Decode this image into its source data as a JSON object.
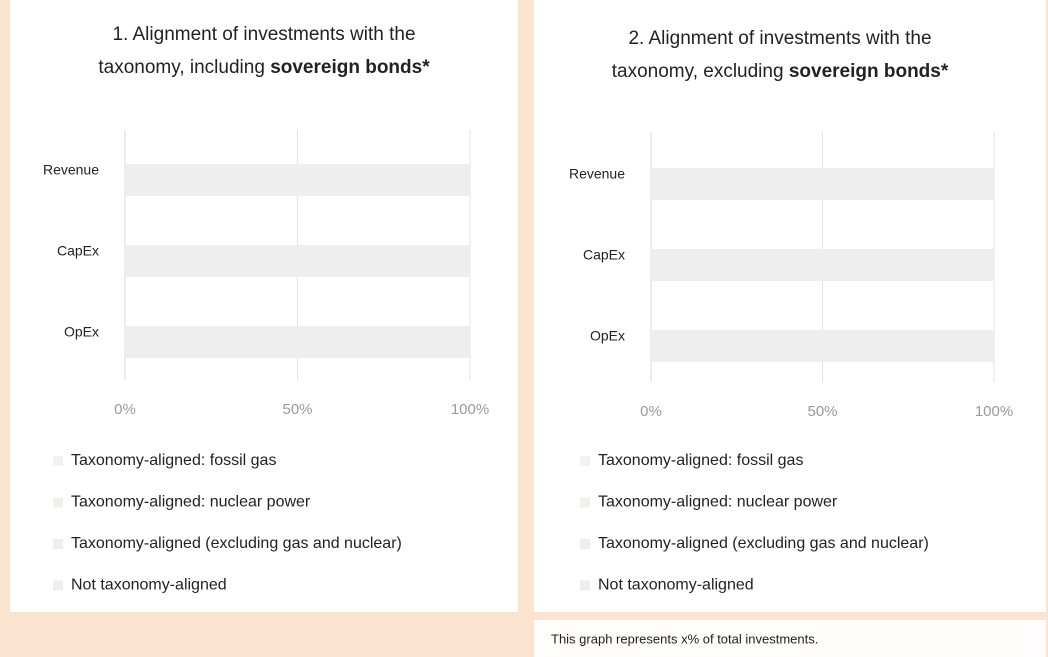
{
  "chart_data": [
    {
      "type": "stacked-bar-horizontal",
      "title": [
        "1. Alignment of investments with the",
        "taxonomy, including"
      ],
      "title_emphasis": "sovereign bonds*",
      "categories": [
        "Revenue",
        "CapEx",
        "OpEx"
      ],
      "series": [
        {
          "name": "Taxonomy-aligned: fossil gas",
          "color": "#f2f2f2",
          "values": [
            0,
            0,
            0
          ]
        },
        {
          "name": "Taxonomy-aligned: nuclear power",
          "color": "#f1f1ea",
          "values": [
            0,
            0,
            0
          ]
        },
        {
          "name": "Taxonomy-aligned (excluding gas and nuclear)",
          "color": "#efefef",
          "values": [
            0,
            0,
            0
          ]
        },
        {
          "name": "Not taxonomy-aligned",
          "color": "#eeeeee",
          "values": [
            100,
            100,
            100
          ]
        }
      ],
      "xlim": [
        0,
        100
      ],
      "xticks": [
        {
          "value": 0,
          "label": "0%"
        },
        {
          "value": 50,
          "label": "50%"
        },
        {
          "value": 100,
          "label": "100%"
        }
      ],
      "grid": true
    },
    {
      "type": "stacked-bar-horizontal",
      "title": [
        "2. Alignment of investments with the",
        "taxonomy, excluding"
      ],
      "title_emphasis": "sovereign bonds*",
      "categories": [
        "Revenue",
        "CapEx",
        "OpEx"
      ],
      "series": [
        {
          "name": "Taxonomy-aligned: fossil gas",
          "color": "#f2f2f2",
          "values": [
            0,
            0,
            0
          ]
        },
        {
          "name": "Taxonomy-aligned: nuclear power",
          "color": "#f1f1ea",
          "values": [
            0,
            0,
            0
          ]
        },
        {
          "name": "Taxonomy-aligned (excluding gas and nuclear)",
          "color": "#efefef",
          "values": [
            0,
            0,
            0
          ]
        },
        {
          "name": "Not taxonomy-aligned",
          "color": "#eeeeee",
          "values": [
            100,
            100,
            100
          ]
        }
      ],
      "xlim": [
        0,
        100
      ],
      "xticks": [
        {
          "value": 0,
          "label": "0%"
        },
        {
          "value": 50,
          "label": "50%"
        },
        {
          "value": 100,
          "label": "100%"
        }
      ],
      "grid": true
    }
  ],
  "footnote": "This graph represents x% of total investments."
}
